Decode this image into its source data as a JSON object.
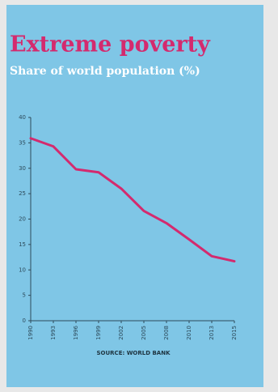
{
  "chart_data": {
    "type": "line",
    "title": "Extreme poverty",
    "subtitle": "Share of world population (%)",
    "source": "SOURCE: WORLD BANK",
    "categories": [
      "1990",
      "1993",
      "1996",
      "1999",
      "2002",
      "2005",
      "2008",
      "2010",
      "2013",
      "2015"
    ],
    "series": [
      {
        "name": "Extreme poverty",
        "color": "#d42a6e",
        "values": [
          35.9,
          34.3,
          29.8,
          29.2,
          26,
          21.6,
          19.2,
          16,
          12.7,
          11.7
        ]
      }
    ],
    "ylim": [
      0,
      40
    ],
    "yticks": [
      0,
      5,
      10,
      15,
      20,
      25,
      30,
      35,
      40
    ],
    "grid": false
  }
}
